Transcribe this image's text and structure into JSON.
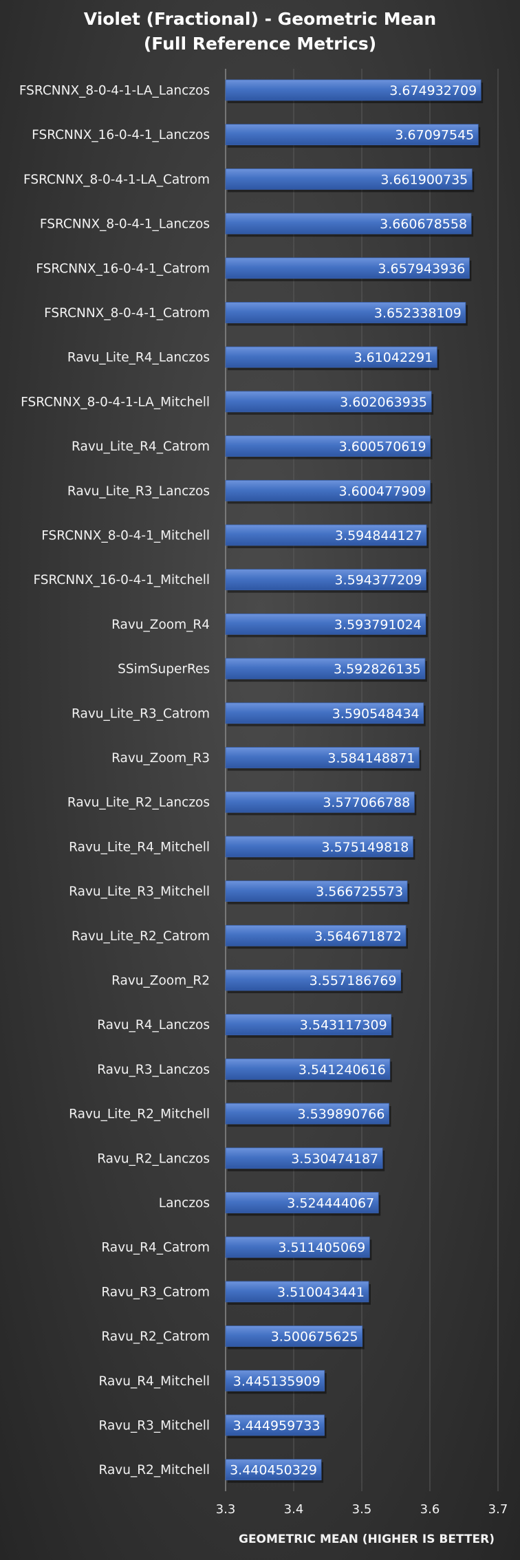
{
  "chart_data": {
    "type": "bar",
    "orientation": "horizontal",
    "title": "Violet (Fractional) - Geometric Mean",
    "subtitle": "(Full Reference Metrics)",
    "xlabel": "GEOMETRIC MEAN (HIGHER IS BETTER)",
    "ylabel": "",
    "xlim": [
      3.3,
      3.7
    ],
    "xticks": [
      "3.3",
      "3.4",
      "3.5",
      "3.6",
      "3.7"
    ],
    "grid": true,
    "bar_color": "#4472c4",
    "categories": [
      "FSRCNNX_8-0-4-1-LA_Lanczos",
      "FSRCNNX_16-0-4-1_Lanczos",
      "FSRCNNX_8-0-4-1-LA_Catrom",
      "FSRCNNX_8-0-4-1_Lanczos",
      "FSRCNNX_16-0-4-1_Catrom",
      "FSRCNNX_8-0-4-1_Catrom",
      "Ravu_Lite_R4_Lanczos",
      "FSRCNNX_8-0-4-1-LA_Mitchell",
      "Ravu_Lite_R4_Catrom",
      "Ravu_Lite_R3_Lanczos",
      "FSRCNNX_8-0-4-1_Mitchell",
      "FSRCNNX_16-0-4-1_Mitchell",
      "Ravu_Zoom_R4",
      "SSimSuperRes",
      "Ravu_Lite_R3_Catrom",
      "Ravu_Zoom_R3",
      "Ravu_Lite_R2_Lanczos",
      "Ravu_Lite_R4_Mitchell",
      "Ravu_Lite_R3_Mitchell",
      "Ravu_Lite_R2_Catrom",
      "Ravu_Zoom_R2",
      "Ravu_R4_Lanczos",
      "Ravu_R3_Lanczos",
      "Ravu_Lite_R2_Mitchell",
      "Ravu_R2_Lanczos",
      "Lanczos",
      "Ravu_R4_Catrom",
      "Ravu_R3_Catrom",
      "Ravu_R2_Catrom",
      "Ravu_R4_Mitchell",
      "Ravu_R3_Mitchell",
      "Ravu_R2_Mitchell"
    ],
    "values": [
      3.674932709,
      3.67097545,
      3.661900735,
      3.660678558,
      3.657943936,
      3.652338109,
      3.61042291,
      3.602063935,
      3.600570619,
      3.600477909,
      3.594844127,
      3.594377209,
      3.593791024,
      3.592826135,
      3.590548434,
      3.584148871,
      3.577066788,
      3.575149818,
      3.566725573,
      3.564671872,
      3.557186769,
      3.543117309,
      3.541240616,
      3.539890766,
      3.530474187,
      3.524444067,
      3.511405069,
      3.510043441,
      3.500675625,
      3.445135909,
      3.444959733,
      3.440450329
    ],
    "value_labels": [
      "3.674932709",
      "3.67097545",
      "3.661900735",
      "3.660678558",
      "3.657943936",
      "3.652338109",
      "3.61042291",
      "3.602063935",
      "3.600570619",
      "3.600477909",
      "3.594844127",
      "3.594377209",
      "3.593791024",
      "3.592826135",
      "3.590548434",
      "3.584148871",
      "3.577066788",
      "3.575149818",
      "3.566725573",
      "3.564671872",
      "3.557186769",
      "3.543117309",
      "3.541240616",
      "3.539890766",
      "3.530474187",
      "3.524444067",
      "3.511405069",
      "3.510043441",
      "3.500675625",
      "3.445135909",
      "3.444959733",
      "3.440450329"
    ]
  }
}
